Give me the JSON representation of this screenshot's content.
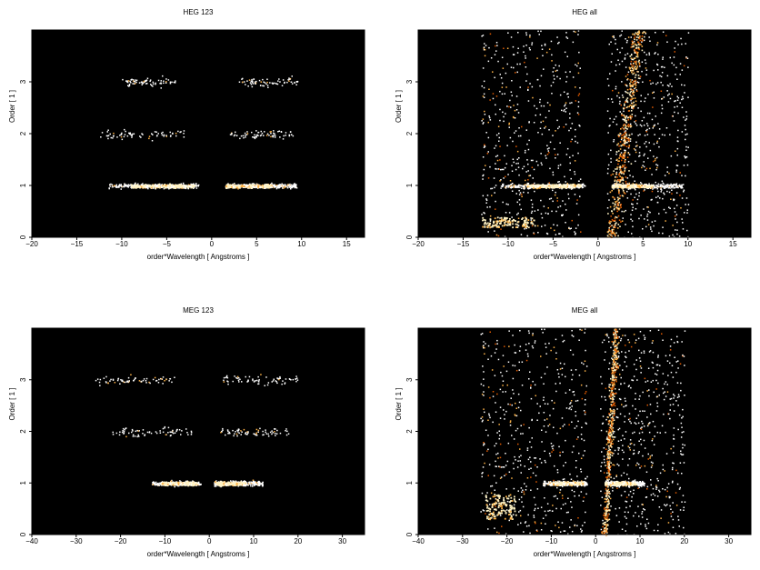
{
  "chart_data": [
    {
      "type": "scatter",
      "title": "HEG 123",
      "xlabel": "order*Wavelength [ Angstroms ]",
      "ylabel": "Order [ 1 ]",
      "xlim": [
        -20,
        17
      ],
      "ylim": [
        0,
        4
      ],
      "xticks": [
        "−20",
        "−15",
        "−10",
        "−5",
        "0",
        "5",
        "10",
        "15"
      ],
      "xtick_values": [
        -20,
        -15,
        -10,
        -5,
        0,
        5,
        10,
        15
      ],
      "yticks": [
        "0",
        "1",
        "2",
        "3"
      ],
      "ytick_values": [
        0,
        1,
        2,
        3
      ],
      "background": "#000000",
      "point_colors": [
        "#ffffff",
        "#fff3c4",
        "#ffb347",
        "#e05a00"
      ],
      "bands": [
        {
          "order": 1,
          "x_ranges": [
            [
              -11.5,
              -1.5
            ],
            [
              1.5,
              9.5
            ]
          ],
          "density": "high",
          "bright_cores": [
            [
              -9,
              -2
            ],
            [
              1.5,
              6.5
            ]
          ]
        },
        {
          "order": 2,
          "x_ranges": [
            [
              -12.5,
              -3
            ],
            [
              2,
              9
            ]
          ],
          "density": "low"
        },
        {
          "order": 3,
          "x_ranges": [
            [
              -10,
              -4
            ],
            [
              3,
              9.5
            ]
          ],
          "density": "low"
        }
      ]
    },
    {
      "type": "scatter",
      "title": "HEG all",
      "xlabel": "order*Wavelength [ Angstroms ]",
      "ylabel": "Order [ 1 ]",
      "xlim": [
        -20,
        17
      ],
      "ylim": [
        0,
        4
      ],
      "xticks": [
        "−20",
        "−15",
        "−10",
        "−5",
        "0",
        "5",
        "10",
        "15"
      ],
      "xtick_values": [
        -20,
        -15,
        -10,
        -5,
        0,
        5,
        10,
        15
      ],
      "yticks": [
        "0",
        "1",
        "2",
        "3"
      ],
      "ytick_values": [
        0,
        1,
        2,
        3
      ],
      "background": "#000000",
      "point_colors": [
        "#ffffff",
        "#fff3c4",
        "#ffb347",
        "#e05a00"
      ],
      "bands": [
        {
          "order": 1,
          "x_ranges": [
            [
              -11,
              -1.5
            ],
            [
              1.5,
              9.5
            ]
          ],
          "density": "high",
          "bright_cores": [
            [
              -8,
              -2
            ],
            [
              1.5,
              6
            ]
          ]
        }
      ],
      "diffuse_region": {
        "x_left": [
          -13,
          -2
        ],
        "x_right": [
          1,
          10
        ],
        "y_range": [
          0,
          4
        ]
      },
      "streak": {
        "from": [
          1.5,
          0
        ],
        "to": [
          4.5,
          4
        ]
      },
      "low_cluster": {
        "x_range": [
          -13,
          -7
        ],
        "y_range": [
          0.2,
          0.4
        ]
      }
    },
    {
      "type": "scatter",
      "title": "MEG 123",
      "xlabel": "order*Wavelength [ Angstroms ]",
      "ylabel": "Order [ 1 ]",
      "xlim": [
        -40,
        35
      ],
      "ylim": [
        0,
        4
      ],
      "xticks": [
        "−40",
        "−30",
        "−20",
        "−10",
        "0",
        "10",
        "20",
        "30"
      ],
      "xtick_values": [
        -40,
        -30,
        -20,
        -10,
        0,
        10,
        20,
        30
      ],
      "yticks": [
        "0",
        "1",
        "2",
        "3"
      ],
      "ytick_values": [
        0,
        1,
        2,
        3
      ],
      "background": "#000000",
      "point_colors": [
        "#ffffff",
        "#fff3c4",
        "#ffb347",
        "#e05a00"
      ],
      "bands": [
        {
          "order": 1,
          "x_ranges": [
            [
              -13,
              -2
            ],
            [
              1,
              12
            ]
          ],
          "density": "high",
          "bright_cores": [
            [
              -11,
              -3
            ],
            [
              1.5,
              8
            ]
          ]
        },
        {
          "order": 2,
          "x_ranges": [
            [
              -22,
              -4
            ],
            [
              2,
              18
            ]
          ],
          "density": "low"
        },
        {
          "order": 3,
          "x_ranges": [
            [
              -26,
              -8
            ],
            [
              3,
              20
            ]
          ],
          "density": "low"
        }
      ]
    },
    {
      "type": "scatter",
      "title": "MEG all",
      "xlabel": "order*Wavelength [ Angstroms ]",
      "ylabel": "Order [ 1 ]",
      "xlim": [
        -40,
        35
      ],
      "ylim": [
        0,
        4
      ],
      "xticks": [
        "−40",
        "−30",
        "−20",
        "−10",
        "0",
        "10",
        "20",
        "30"
      ],
      "xtick_values": [
        -40,
        -30,
        -20,
        -10,
        0,
        10,
        20,
        30
      ],
      "yticks": [
        "0",
        "1",
        "2",
        "3"
      ],
      "ytick_values": [
        0,
        1,
        2,
        3
      ],
      "background": "#000000",
      "point_colors": [
        "#ffffff",
        "#fff3c4",
        "#ffb347",
        "#e05a00"
      ],
      "bands": [
        {
          "order": 1,
          "x_ranges": [
            [
              -12,
              -2
            ],
            [
              2,
              11
            ]
          ],
          "density": "high",
          "bright_cores": [
            [
              -10,
              -3
            ],
            [
              2,
              9
            ]
          ]
        }
      ],
      "diffuse_region": {
        "x_left": [
          -26,
          -2
        ],
        "x_right": [
          1,
          20
        ],
        "y_range": [
          0,
          4
        ]
      },
      "streak": {
        "from": [
          2,
          0
        ],
        "to": [
          4.5,
          4
        ]
      },
      "low_cluster": {
        "x_range": [
          -25,
          -18
        ],
        "y_range": [
          0.3,
          0.8
        ]
      }
    }
  ]
}
